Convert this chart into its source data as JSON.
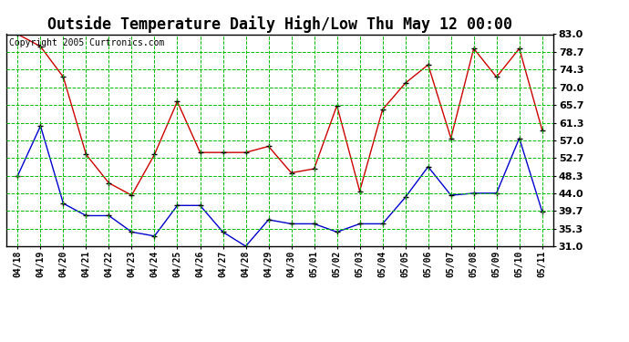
{
  "title": "Outside Temperature Daily High/Low Thu May 12 00:00",
  "copyright": "Copyright 2005 Curtronics.com",
  "x_labels": [
    "04/18",
    "04/19",
    "04/20",
    "04/21",
    "04/22",
    "04/23",
    "04/24",
    "04/25",
    "04/26",
    "04/27",
    "04/28",
    "04/29",
    "04/30",
    "05/01",
    "05/02",
    "05/03",
    "05/04",
    "05/05",
    "05/06",
    "05/07",
    "05/08",
    "05/09",
    "05/10",
    "05/11"
  ],
  "high_values": [
    83.0,
    80.0,
    72.5,
    53.5,
    46.5,
    43.5,
    53.5,
    66.5,
    54.0,
    54.0,
    54.0,
    55.5,
    49.0,
    50.0,
    65.5,
    44.5,
    64.5,
    71.0,
    75.5,
    57.5,
    79.5,
    72.5,
    79.5,
    59.5
  ],
  "low_values": [
    48.3,
    60.5,
    41.5,
    38.5,
    38.5,
    34.5,
    33.5,
    41.0,
    41.0,
    34.5,
    31.0,
    37.5,
    36.5,
    36.5,
    34.5,
    36.5,
    36.5,
    43.0,
    50.5,
    43.5,
    44.0,
    44.0,
    57.5,
    39.5
  ],
  "high_color": "#cc0000",
  "low_color": "#0000cc",
  "bg_color": "#ffffff",
  "grid_color": "#00bb00",
  "ylim": [
    31.0,
    83.0
  ],
  "yticks": [
    31.0,
    35.3,
    39.7,
    44.0,
    48.3,
    52.7,
    57.0,
    61.3,
    65.7,
    70.0,
    74.3,
    78.7,
    83.0
  ],
  "title_fontsize": 12,
  "copyright_fontsize": 7,
  "tick_fontsize": 8,
  "xtick_fontsize": 7
}
